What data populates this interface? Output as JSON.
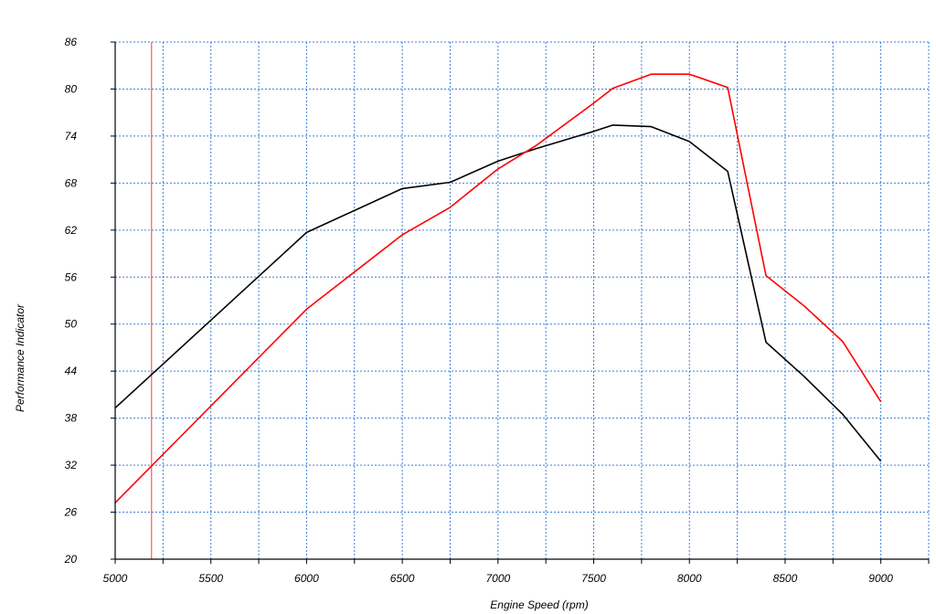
{
  "chart_data": {
    "type": "line",
    "title": "",
    "xlabel": "Engine Speed (rpm)",
    "ylabel": "Performance Indicator",
    "xlim": [
      5000,
      9250
    ],
    "ylim": [
      20,
      86
    ],
    "x_ticks": [
      5000,
      5500,
      6000,
      6500,
      7000,
      7500,
      8000,
      8500,
      9000
    ],
    "y_ticks": [
      20,
      26,
      32,
      38,
      44,
      50,
      56,
      62,
      68,
      74,
      80,
      86
    ],
    "grid": true,
    "grid_color": "#3c7fd6",
    "marker_line": {
      "x": 5190,
      "color": "#ff3b3b"
    },
    "series": [
      {
        "color": "#000000",
        "x": [
          5000,
          6000,
          6500,
          6750,
          7000,
          7200,
          7500,
          7600,
          7800,
          8000,
          8200,
          8400,
          8600,
          8800,
          9000
        ],
        "y": [
          39.3,
          61.7,
          67.3,
          68.1,
          70.8,
          72.4,
          74.6,
          75.4,
          75.2,
          73.3,
          69.5,
          47.7,
          43.3,
          38.5,
          32.5
        ]
      },
      {
        "color": "#ff0000",
        "x": [
          5000,
          6000,
          6500,
          6750,
          7000,
          7200,
          7500,
          7600,
          7800,
          8000,
          8200,
          8400,
          8600,
          8800,
          9000
        ],
        "y": [
          27.2,
          51.9,
          61.4,
          64.9,
          69.8,
          72.8,
          78.2,
          80.1,
          81.9,
          81.9,
          80.2,
          56.2,
          52.3,
          47.8,
          40.1
        ]
      }
    ]
  }
}
